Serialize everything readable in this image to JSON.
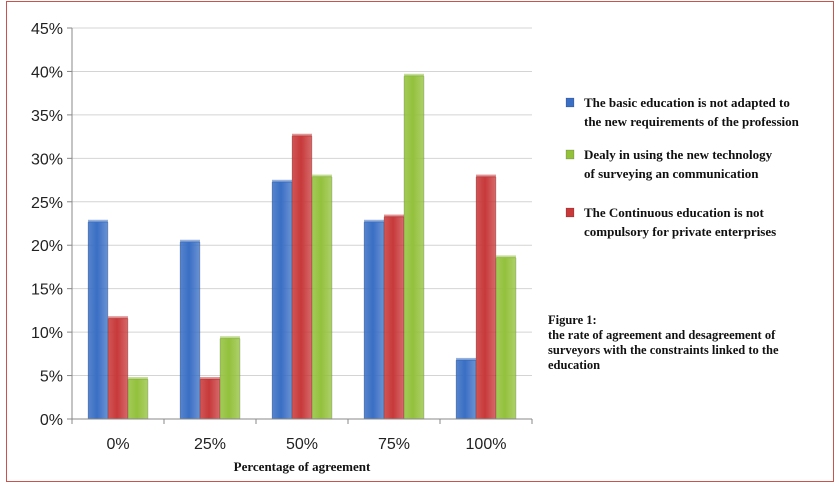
{
  "chart_data": {
    "type": "bar",
    "categories": [
      "0%",
      "25%",
      "50%",
      "75%",
      "100%"
    ],
    "xlabel": "Percentage of agreement",
    "ylabel": "",
    "ylim": [
      0,
      45
    ],
    "yticks": [
      0,
      5,
      10,
      15,
      20,
      25,
      30,
      35,
      40,
      45
    ],
    "ytick_labels": [
      "0%",
      "5%",
      "10%",
      "15%",
      "20%",
      "25%",
      "30%",
      "35%",
      "40%",
      "45%"
    ],
    "grid": true,
    "legend_position": "right",
    "series": [
      {
        "name": "The basic education is not adapted to the new requirements of the profession",
        "legend_lines": [
          "The basic education is not adapted to",
          "the new requirements of the profession"
        ],
        "color": "#3a6fc4",
        "values": [
          22.7,
          20.4,
          27.3,
          22.7,
          6.8
        ]
      },
      {
        "name": "The Continuous education is not compulsory for private enterprises",
        "legend_lines": [
          "The Continuous education is not",
          "compulsory for private enterprises"
        ],
        "color": "#c8393a",
        "values": [
          11.6,
          4.6,
          32.6,
          23.3,
          27.9
        ]
      },
      {
        "name": "Dealy in using the new technology of surveying an communication",
        "legend_lines": [
          "Dealy in using the new technology",
          "of surveying an communication"
        ],
        "color": "#93c13c",
        "values": [
          4.6,
          9.3,
          27.9,
          39.5,
          18.6
        ]
      }
    ],
    "legend_order": [
      0,
      2,
      1
    ]
  },
  "caption": {
    "lines": [
      "Figure 1:",
      "the rate of agreement and desagreement of",
      "surveyors with the constraints linked to the",
      "education"
    ]
  }
}
